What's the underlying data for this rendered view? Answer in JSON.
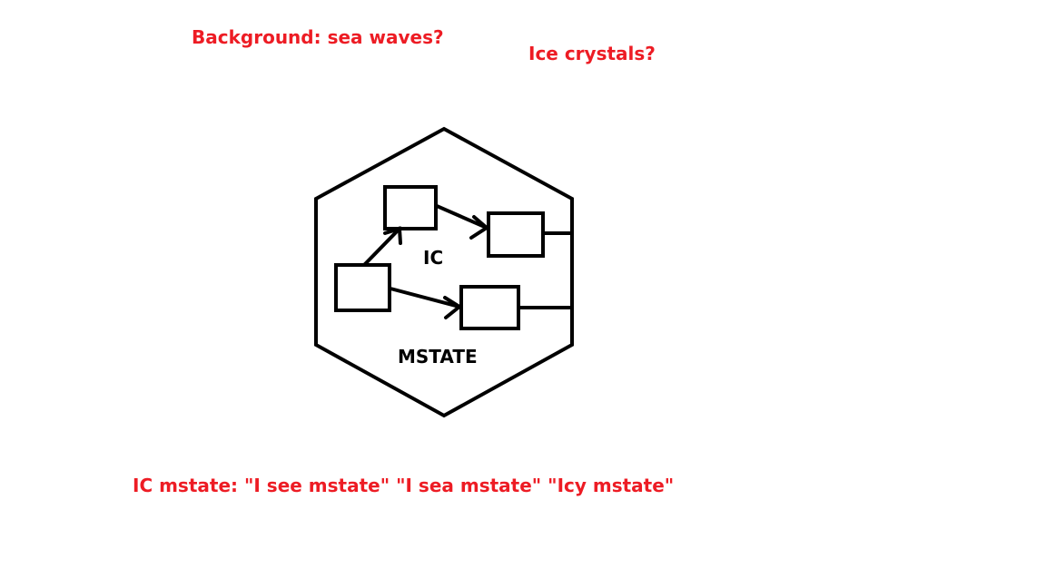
{
  "notes": {
    "background": "Background: sea waves?",
    "ice": "Ice crystals?",
    "name_ideas": "IC mstate: \"I see mstate\" \"I sea mstate\" \"Icy mstate\""
  },
  "diagram": {
    "inner_label": "IC",
    "outer_label": "MSTATE"
  },
  "colors": {
    "note_text": "#ed1c24",
    "diagram_stroke": "#000000",
    "background": "#ffffff"
  }
}
